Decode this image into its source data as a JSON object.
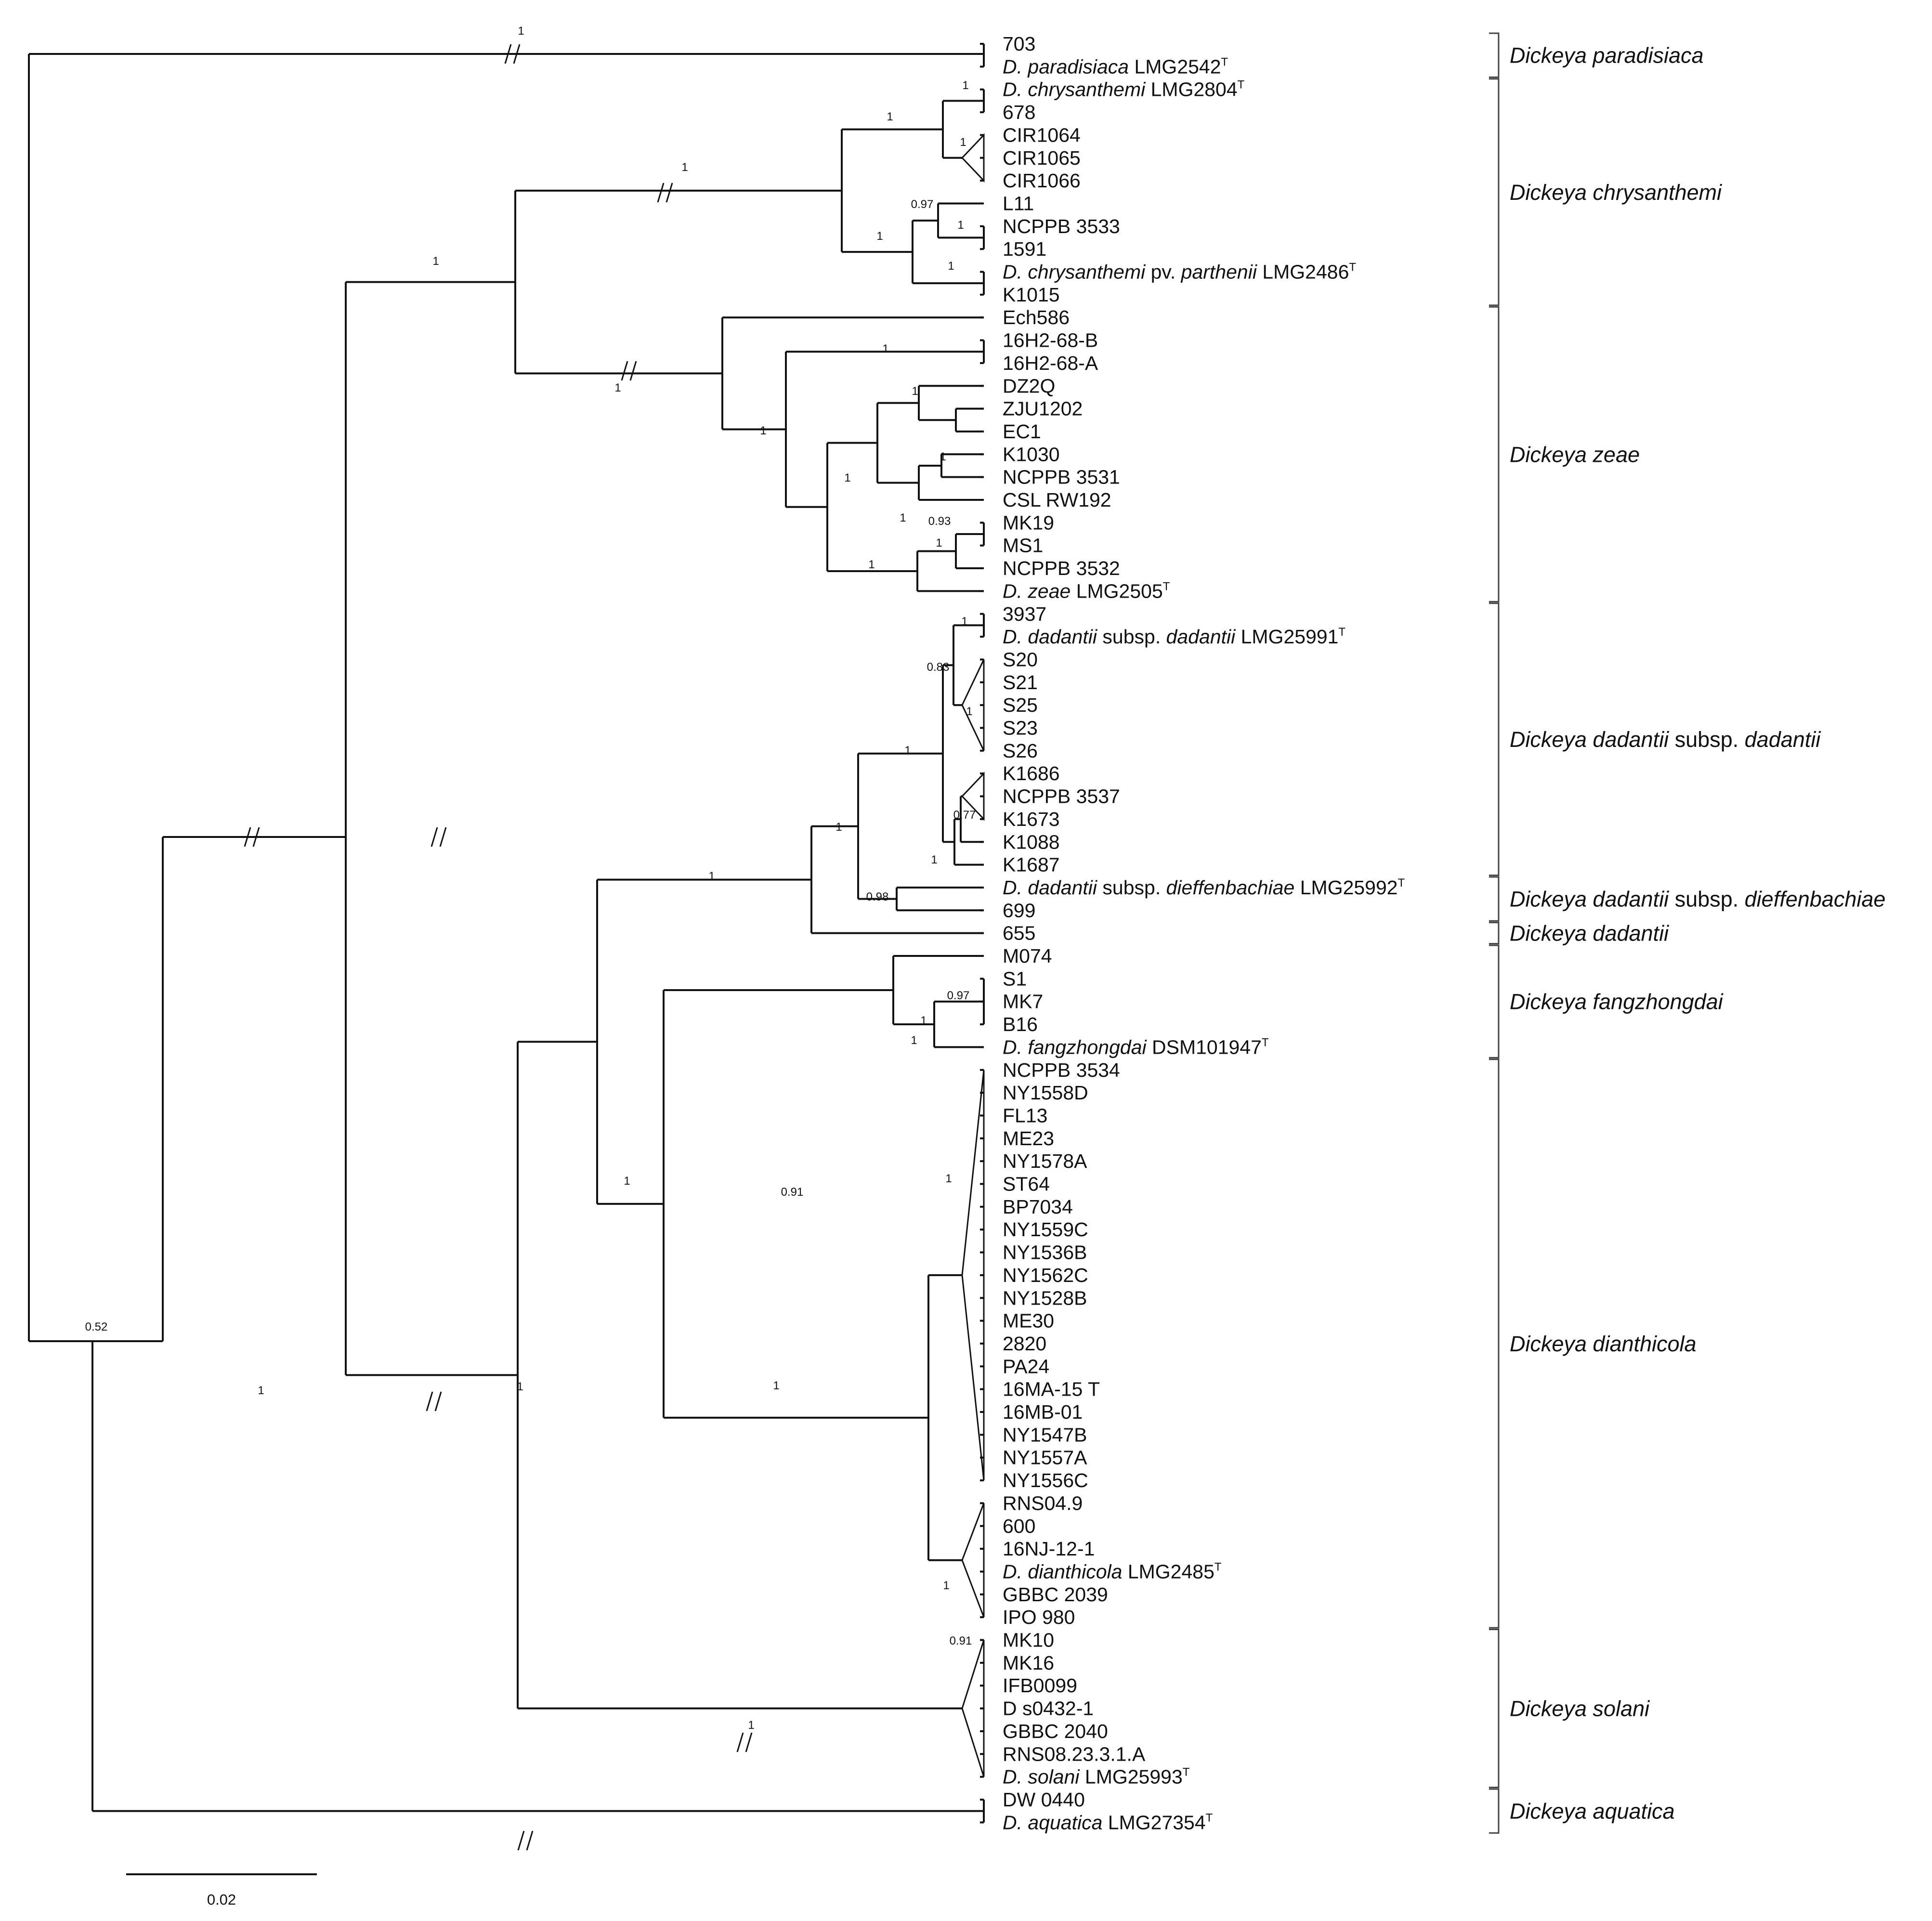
{
  "tips": [
    [
      {
        "t": "703"
      }
    ],
    [
      {
        "t": "D. paradisiaca",
        "i": 1
      },
      {
        "t": " LMG2542"
      },
      {
        "t": "T",
        "s": 1
      }
    ],
    [
      {
        "t": "D. chrysanthemi",
        "i": 1
      },
      {
        "t": " LMG2804"
      },
      {
        "t": "T",
        "s": 1
      }
    ],
    [
      {
        "t": "678"
      }
    ],
    [
      {
        "t": "CIR1064"
      }
    ],
    [
      {
        "t": "CIR1065"
      }
    ],
    [
      {
        "t": "CIR1066"
      }
    ],
    [
      {
        "t": "L11"
      }
    ],
    [
      {
        "t": "NCPPB 3533"
      }
    ],
    [
      {
        "t": "1591"
      }
    ],
    [
      {
        "t": "D. chrysanthemi",
        "i": 1
      },
      {
        "t": " pv. "
      },
      {
        "t": "parthenii",
        "i": 1
      },
      {
        "t": " LMG2486"
      },
      {
        "t": "T",
        "s": 1
      }
    ],
    [
      {
        "t": "K1015"
      }
    ],
    [
      {
        "t": "Ech586"
      }
    ],
    [
      {
        "t": "16H2-68-B"
      }
    ],
    [
      {
        "t": "16H2-68-A"
      }
    ],
    [
      {
        "t": "DZ2Q"
      }
    ],
    [
      {
        "t": "ZJU1202"
      }
    ],
    [
      {
        "t": "EC1"
      }
    ],
    [
      {
        "t": "K1030"
      }
    ],
    [
      {
        "t": "NCPPB 3531"
      }
    ],
    [
      {
        "t": "CSL RW192"
      }
    ],
    [
      {
        "t": "MK19"
      }
    ],
    [
      {
        "t": "MS1"
      }
    ],
    [
      {
        "t": "NCPPB 3532"
      }
    ],
    [
      {
        "t": "D. zeae",
        "i": 1
      },
      {
        "t": " LMG2505"
      },
      {
        "t": "T",
        "s": 1
      }
    ],
    [
      {
        "t": "3937"
      }
    ],
    [
      {
        "t": "D. dadantii",
        "i": 1
      },
      {
        "t": " subsp. "
      },
      {
        "t": "dadantii",
        "i": 1
      },
      {
        "t": " LMG25991"
      },
      {
        "t": "T",
        "s": 1
      }
    ],
    [
      {
        "t": "S20"
      }
    ],
    [
      {
        "t": "S21"
      }
    ],
    [
      {
        "t": "S25"
      }
    ],
    [
      {
        "t": "S23"
      }
    ],
    [
      {
        "t": "S26"
      }
    ],
    [
      {
        "t": "K1686"
      }
    ],
    [
      {
        "t": "NCPPB 3537"
      }
    ],
    [
      {
        "t": "K1673"
      }
    ],
    [
      {
        "t": "K1088"
      }
    ],
    [
      {
        "t": "K1687"
      }
    ],
    [
      {
        "t": "D. dadantii",
        "i": 1
      },
      {
        "t": " subsp. "
      },
      {
        "t": "dieffenbachiae",
        "i": 1
      },
      {
        "t": " LMG25992"
      },
      {
        "t": "T",
        "s": 1
      }
    ],
    [
      {
        "t": "699"
      }
    ],
    [
      {
        "t": "655"
      }
    ],
    [
      {
        "t": "M074"
      }
    ],
    [
      {
        "t": "S1"
      }
    ],
    [
      {
        "t": "MK7"
      }
    ],
    [
      {
        "t": "B16"
      }
    ],
    [
      {
        "t": "D. fangzhongdai",
        "i": 1
      },
      {
        "t": " DSM101947"
      },
      {
        "t": "T",
        "s": 1
      }
    ],
    [
      {
        "t": "NCPPB 3534"
      }
    ],
    [
      {
        "t": "NY1558D"
      }
    ],
    [
      {
        "t": "FL13"
      }
    ],
    [
      {
        "t": "ME23"
      }
    ],
    [
      {
        "t": "NY1578A"
      }
    ],
    [
      {
        "t": "ST64"
      }
    ],
    [
      {
        "t": "BP7034"
      }
    ],
    [
      {
        "t": "NY1559C"
      }
    ],
    [
      {
        "t": "NY1536B"
      }
    ],
    [
      {
        "t": "NY1562C"
      }
    ],
    [
      {
        "t": "NY1528B"
      }
    ],
    [
      {
        "t": "ME30"
      }
    ],
    [
      {
        "t": "2820"
      }
    ],
    [
      {
        "t": "PA24"
      }
    ],
    [
      {
        "t": "16MA-15 T"
      }
    ],
    [
      {
        "t": "16MB-01"
      }
    ],
    [
      {
        "t": "NY1547B"
      }
    ],
    [
      {
        "t": "NY1557A"
      }
    ],
    [
      {
        "t": "NY1556C"
      }
    ],
    [
      {
        "t": "RNS04.9"
      }
    ],
    [
      {
        "t": "600"
      }
    ],
    [
      {
        "t": "16NJ-12-1"
      }
    ],
    [
      {
        "t": "D. dianthicola",
        "i": 1
      },
      {
        "t": " LMG2485"
      },
      {
        "t": "T",
        "s": 1
      }
    ],
    [
      {
        "t": "GBBC 2039"
      }
    ],
    [
      {
        "t": "IPO 980"
      }
    ],
    [
      {
        "t": "MK10"
      }
    ],
    [
      {
        "t": "MK16"
      }
    ],
    [
      {
        "t": "IFB0099"
      }
    ],
    [
      {
        "t": "D s0432-1"
      }
    ],
    [
      {
        "t": "GBBC 2040"
      }
    ],
    [
      {
        "t": "RNS08.23.3.1.A"
      }
    ],
    [
      {
        "t": "D. solani",
        "i": 1
      },
      {
        "t": " LMG25993"
      },
      {
        "t": "T",
        "s": 1
      }
    ],
    [
      {
        "t": "DW 0440"
      }
    ],
    [
      {
        "t": "D. aquatica",
        "i": 1
      },
      {
        "t": " LMG27354"
      },
      {
        "t": "T",
        "s": 1
      }
    ]
  ],
  "support_values": [
    "1",
    "1",
    "1",
    "1",
    "0.97",
    "1",
    "1",
    "1",
    "1",
    "1",
    "1",
    "1",
    "1",
    "1",
    "1",
    "0.93",
    "1",
    "1",
    "1",
    "1",
    "0.83",
    "1",
    "1",
    "1",
    "0.77",
    "1",
    "0.98",
    "1",
    "1",
    "0.97",
    "1",
    "1",
    "0.91",
    "1",
    "1",
    "0.91",
    "1",
    "1",
    "0.52",
    "1",
    "1",
    "1"
  ],
  "clades": [
    [
      {
        "t": "Dickeya paradisiaca"
      }
    ],
    [
      {
        "t": "Dickeya chrysanthemi"
      }
    ],
    [
      {
        "t": "Dickeya zeae"
      }
    ],
    [
      {
        "t": "Dickeya dadantii"
      },
      {
        "t": " subsp. ",
        "n": 1
      },
      {
        "t": "dadantii"
      }
    ],
    [
      {
        "t": "Dickeya dadantii"
      },
      {
        "t": " subsp. ",
        "n": 1
      },
      {
        "t": "dieffenbachiae"
      }
    ],
    [
      {
        "t": "Dickeya dadantii"
      }
    ],
    [
      {
        "t": "Dickeya fangzhongdai"
      }
    ],
    [
      {
        "t": "Dickeya dianthicola"
      }
    ],
    [
      {
        "t": "Dickeya solani"
      }
    ],
    [
      {
        "t": "Dickeya aquatica"
      }
    ]
  ],
  "scale_bar": {
    "label": "0.02"
  }
}
